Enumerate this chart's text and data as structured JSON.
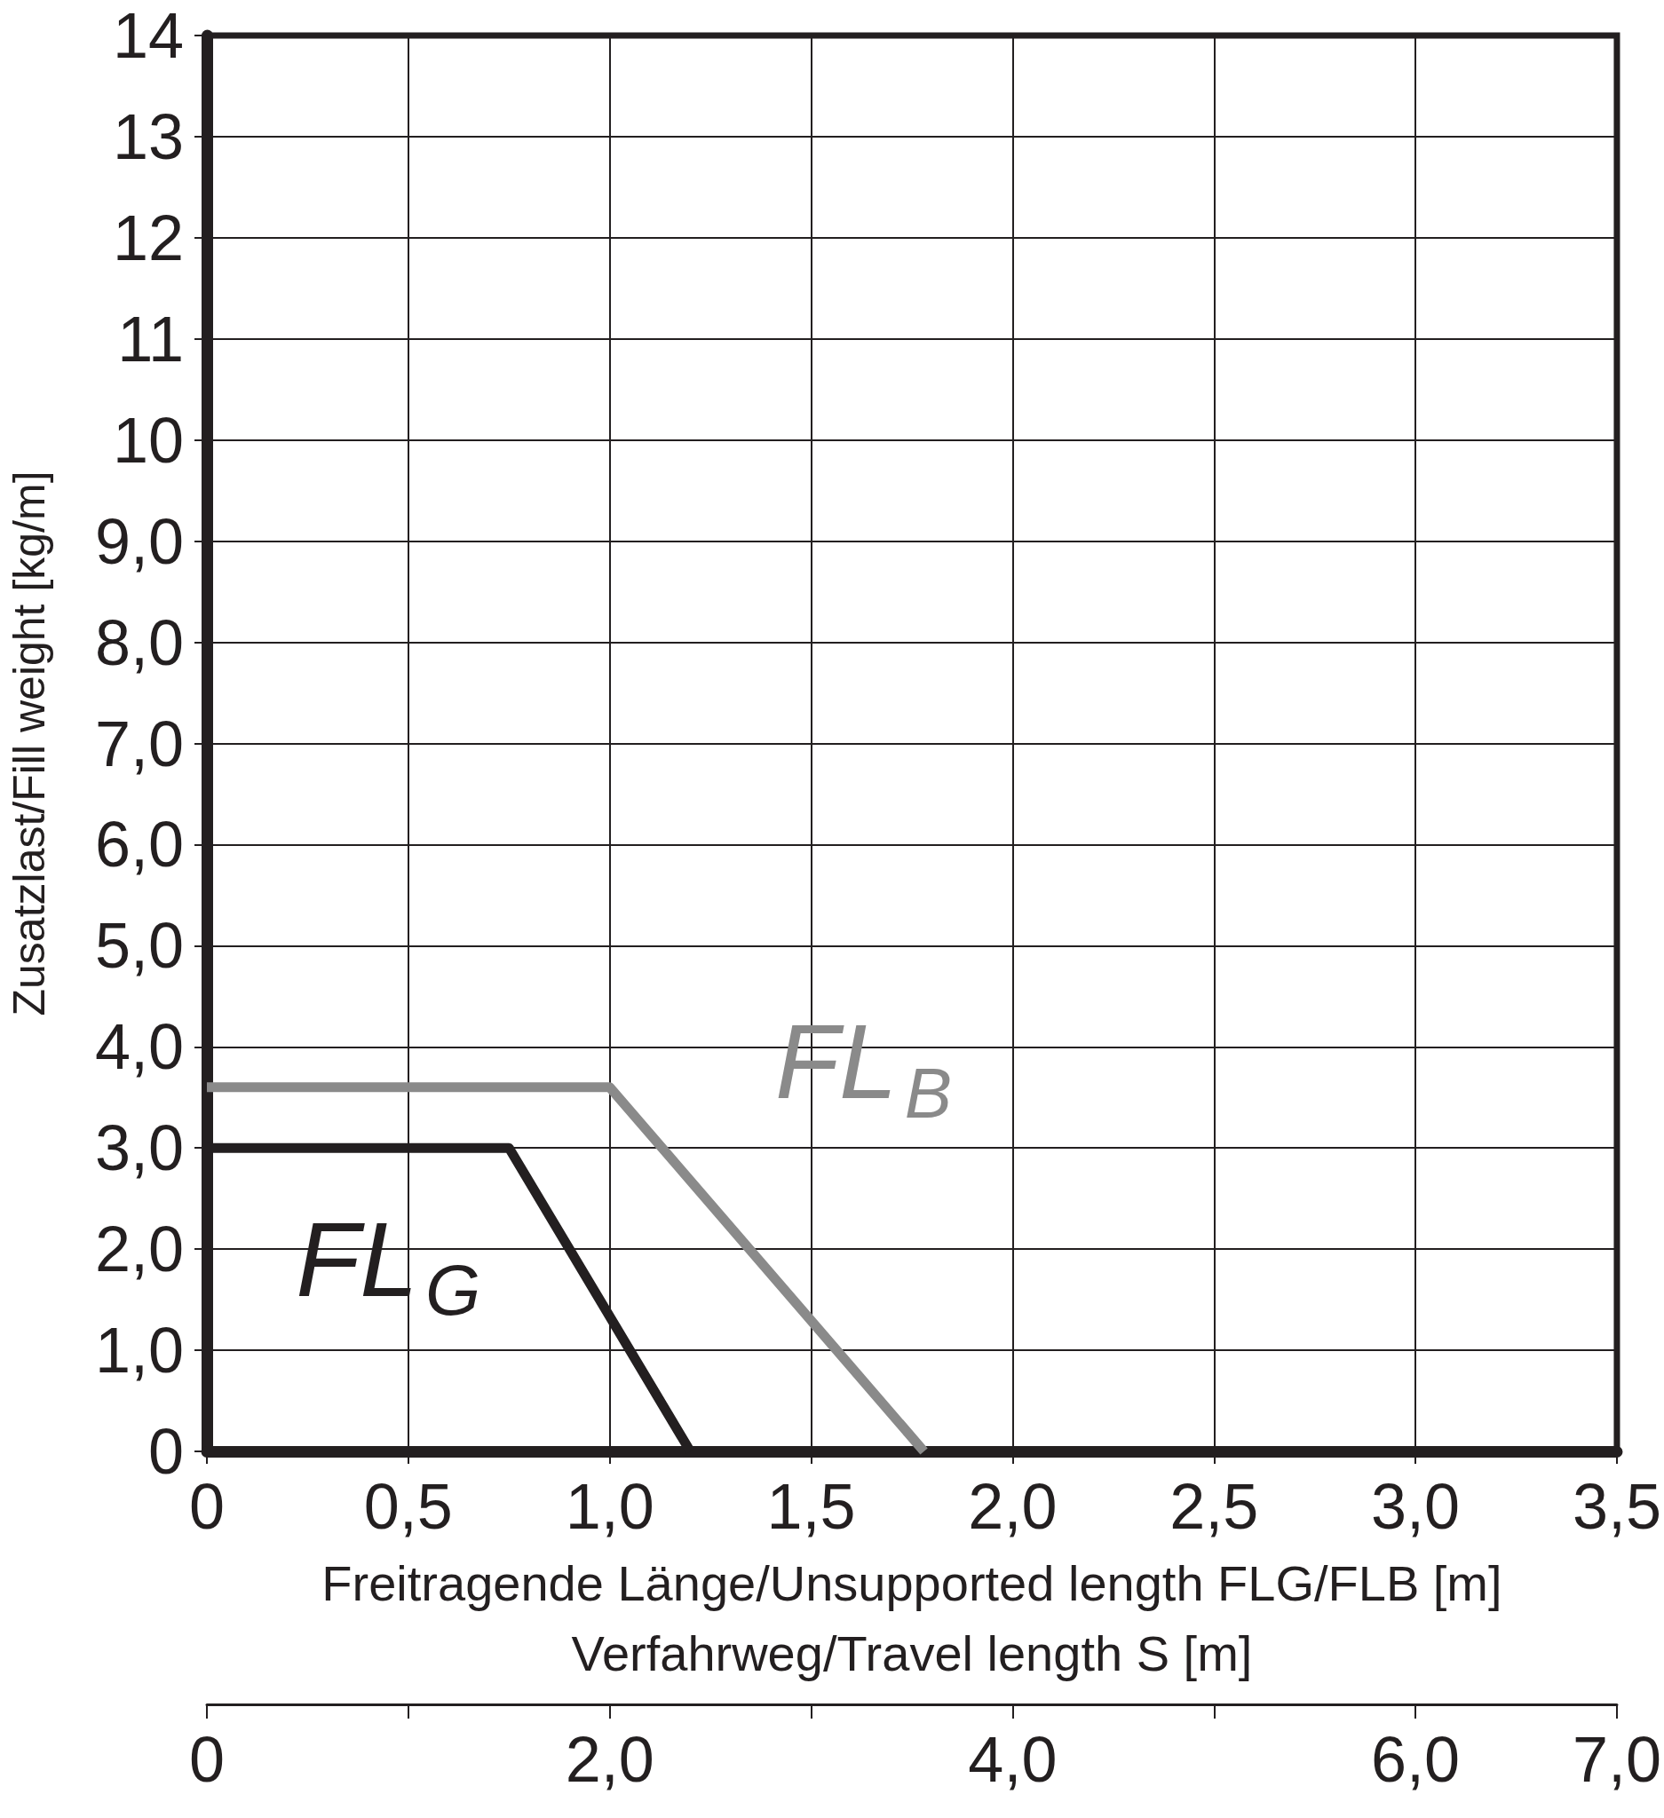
{
  "chart_data": {
    "type": "line",
    "xlabel": "Freitragende Länge/Unsupported length FLG/FLB [m]",
    "x2label": "Verfahrweg/Travel length S [m]",
    "ylabel": "Zusatzlast/Fill weight [kg/m]",
    "series": [
      {
        "name": "FL$_{G}$",
        "color": "#231f20",
        "x": [
          0,
          0.75,
          1.2
        ],
        "values": [
          3.0,
          3.0,
          0
        ]
      },
      {
        "name": "FL$_{B}$",
        "color": "#8a8a8a",
        "x": [
          0,
          1.0,
          1.78
        ],
        "values": [
          3.6,
          3.6,
          0
        ]
      }
    ],
    "xlim": [
      0,
      3.5
    ],
    "xticks": [
      0,
      {
        "value": 0.5,
        "label": "0,5"
      },
      {
        "value": 1,
        "label": "1,0"
      },
      {
        "value": 1.5,
        "label": "1,5"
      },
      {
        "value": 2,
        "label": "2,0"
      },
      {
        "value": 2.5,
        "label": "2,5"
      },
      {
        "value": 3,
        "label": "3,0"
      },
      {
        "value": 3.5,
        "label": "3,5"
      }
    ],
    "x2lim": [
      0,
      7
    ],
    "x2ticks": [
      0,
      {
        "value": 1,
        "label": null
      },
      {
        "value": 2,
        "label": "2,0"
      },
      {
        "value": 3,
        "label": null
      },
      {
        "value": 4,
        "label": "4,0"
      },
      {
        "value": 5,
        "label": null
      },
      {
        "value": 6,
        "label": "6,0"
      },
      {
        "value": 7,
        "label": "7,0"
      }
    ],
    "ylim": [
      0,
      14
    ],
    "yticks": [
      0,
      {
        "value": 1,
        "label": "1,0"
      },
      {
        "value": 2,
        "label": "2,0"
      },
      {
        "value": 3,
        "label": "3,0"
      },
      {
        "value": 4,
        "label": "4,0"
      },
      {
        "value": 5,
        "label": "5,0"
      },
      {
        "value": 6,
        "label": "6,0"
      },
      {
        "value": 7,
        "label": "7,0"
      },
      {
        "value": 8,
        "label": "8,0"
      },
      {
        "value": 9,
        "label": "9,0"
      },
      10,
      11,
      12,
      13,
      14
    ],
    "grid": true,
    "legend": false,
    "marker": "none",
    "line_style": "solid"
  }
}
